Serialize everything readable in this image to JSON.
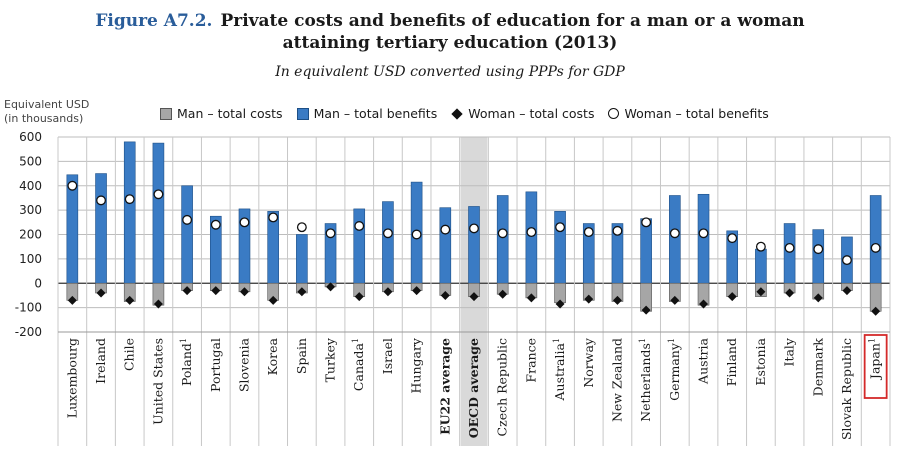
{
  "header": {
    "figure_label": "Figure A7.2.",
    "title_line1": "Private costs and benefits of education for a man or a woman",
    "title_line2": "attaining tertiary education (2013)",
    "subtitle": "In equivalent USD converted using PPPs for GDP"
  },
  "y_axis_label": {
    "line1": "Equivalent USD",
    "line2": "(in thousands)"
  },
  "legend": {
    "man_costs": "Man – total costs",
    "man_benefits": "Man – total benefits",
    "woman_costs": "Woman – total costs",
    "woman_benefits": "Woman – total benefits"
  },
  "colors": {
    "man_costs": "#a6a6a6",
    "man_benefits": "#3a7bc4",
    "highlight_band": "#d9d9d9",
    "japan_box": "#d42a2a"
  },
  "chart_data": {
    "type": "bar",
    "title": "Private costs and benefits of education for a man or a woman attaining tertiary education (2013)",
    "ylabel": "Equivalent USD (in thousands)",
    "ylim": [
      -200,
      600
    ],
    "yticks": [
      -200,
      -100,
      0,
      100,
      200,
      300,
      400,
      500,
      600
    ],
    "categories": [
      "Luxembourg",
      "Ireland",
      "Chile",
      "United States",
      "Poland",
      "Portugal",
      "Slovenia",
      "Korea",
      "Spain",
      "Turkey",
      "Canada",
      "Israel",
      "Hungary",
      "EU22 average",
      "OECD average",
      "Czech Republic",
      "France",
      "Australia",
      "Norway",
      "New Zealand",
      "Netherlands",
      "Germany",
      "Austria",
      "Finland",
      "Estonia",
      "Italy",
      "Denmark",
      "Slovak Republic",
      "Japan"
    ],
    "footnote_marks": [
      "",
      "",
      "",
      "",
      "1",
      "",
      "",
      "",
      "",
      "",
      "1",
      "",
      "",
      "",
      "",
      "",
      "",
      "1",
      "",
      "",
      "1",
      "1",
      "",
      "",
      "",
      "",
      "",
      "",
      "1"
    ],
    "bold_categories": [
      "EU22 average",
      "OECD average"
    ],
    "highlighted_category": "OECD average",
    "boxed_category": "Japan",
    "series": [
      {
        "name": "Man – total costs",
        "values": [
          -70,
          -40,
          -75,
          -90,
          -30,
          -30,
          -35,
          -70,
          -40,
          -15,
          -55,
          -35,
          -30,
          -50,
          -55,
          -45,
          -60,
          -80,
          -70,
          -75,
          -115,
          -75,
          -90,
          -55,
          -55,
          -40,
          -65,
          -30,
          -115
        ]
      },
      {
        "name": "Man – total benefits",
        "values": [
          445,
          450,
          580,
          575,
          400,
          275,
          305,
          295,
          200,
          245,
          305,
          335,
          415,
          310,
          315,
          360,
          375,
          295,
          245,
          245,
          265,
          360,
          365,
          215,
          140,
          245,
          220,
          190,
          360
        ]
      },
      {
        "name": "Woman – total costs",
        "values": [
          -70,
          -40,
          -70,
          -85,
          -30,
          -30,
          -35,
          -70,
          -35,
          -15,
          -55,
          -35,
          -30,
          -50,
          -55,
          -45,
          -60,
          -85,
          -65,
          -70,
          -110,
          -70,
          -85,
          -55,
          -35,
          -40,
          -60,
          -30,
          -115
        ]
      },
      {
        "name": "Woman – total benefits",
        "values": [
          400,
          340,
          345,
          365,
          260,
          240,
          250,
          270,
          230,
          205,
          235,
          205,
          200,
          220,
          225,
          205,
          210,
          230,
          210,
          215,
          250,
          205,
          205,
          185,
          150,
          145,
          140,
          95,
          145
        ]
      }
    ]
  }
}
